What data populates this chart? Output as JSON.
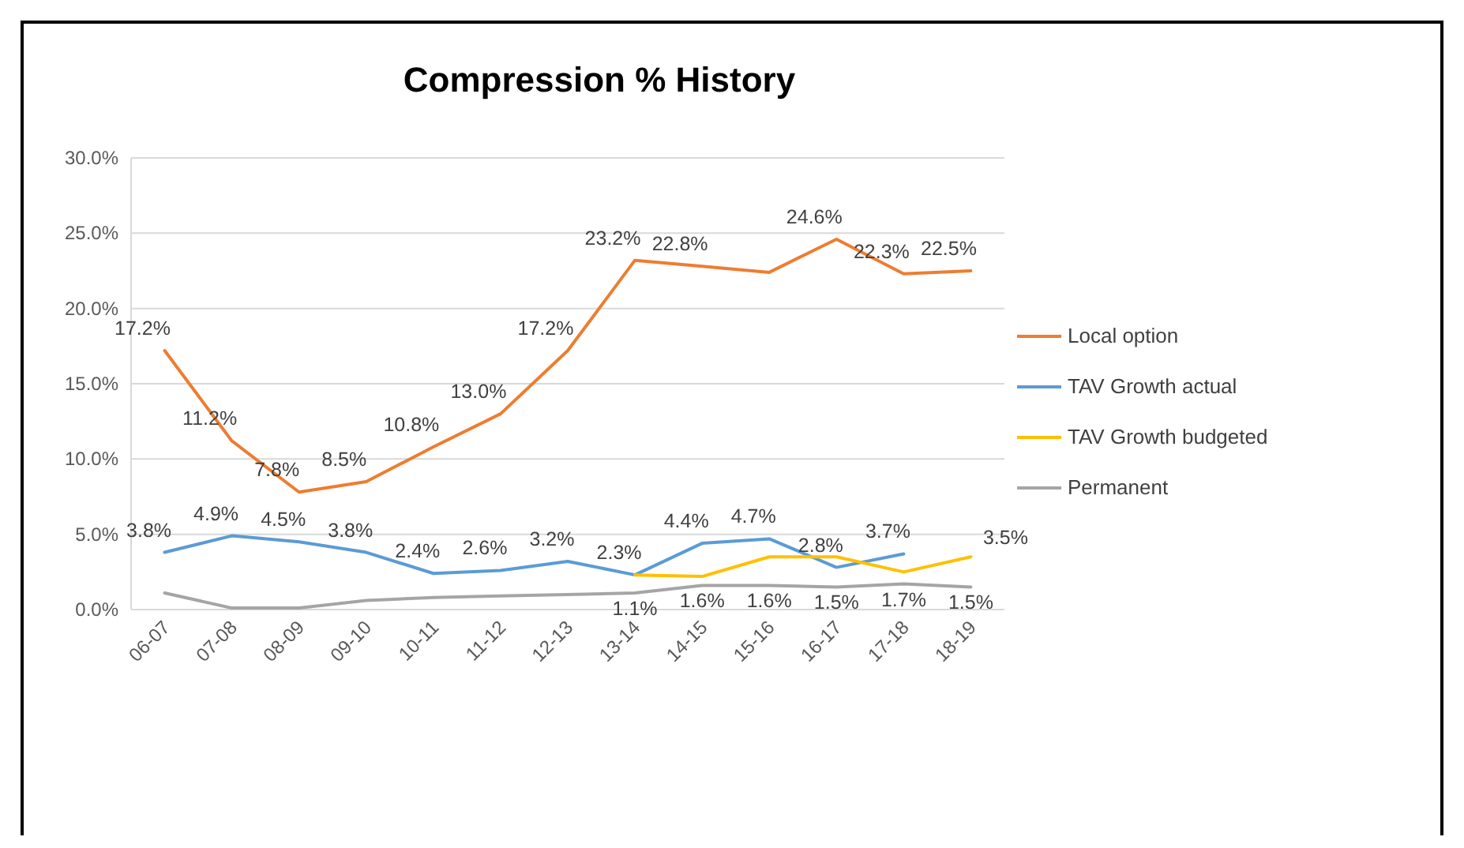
{
  "chart_data": {
    "type": "line",
    "title": "Compression % History",
    "categories": [
      "06-07",
      "07-08",
      "08-09",
      "09-10",
      "10-11",
      "11-12",
      "12-13",
      "13-14",
      "14-15",
      "15-16",
      "16-17",
      "17-18",
      "18-19"
    ],
    "series": [
      {
        "name": "Local option",
        "color": "#ed7d31",
        "values": [
          17.2,
          11.2,
          7.8,
          8.5,
          10.8,
          13.0,
          17.2,
          23.2,
          22.8,
          22.4,
          24.6,
          22.3,
          22.5
        ],
        "value_labels": [
          "17.2%",
          "11.2%",
          "7.8%",
          "8.5%",
          "10.8%",
          "13.0%",
          "17.2%",
          "23.2%",
          "22.8%",
          null,
          "24.6%",
          "22.3%",
          "22.5%"
        ]
      },
      {
        "name": "TAV Growth actual",
        "color": "#5b9bd5",
        "values": [
          3.8,
          4.9,
          4.5,
          3.8,
          2.4,
          2.6,
          3.2,
          2.3,
          4.4,
          4.7,
          2.8,
          3.7,
          null
        ],
        "value_labels": [
          "3.8%",
          "4.9%",
          "4.5%",
          "3.8%",
          "2.4%",
          "2.6%",
          "3.2%",
          "2.3%",
          "4.4%",
          "4.7%",
          "2.8%",
          "3.7%",
          null
        ]
      },
      {
        "name": "TAV Growth budgeted",
        "color": "#ffc000",
        "values": [
          null,
          null,
          null,
          null,
          null,
          null,
          null,
          2.3,
          2.2,
          3.5,
          3.5,
          2.5,
          3.5
        ],
        "value_labels": [
          null,
          null,
          null,
          null,
          null,
          null,
          null,
          null,
          null,
          null,
          null,
          null,
          "3.5%"
        ]
      },
      {
        "name": "Permanent",
        "color": "#a5a5a5",
        "values": [
          1.1,
          0.1,
          0.1,
          0.6,
          0.8,
          0.9,
          1.0,
          1.1,
          1.6,
          1.6,
          1.5,
          1.7,
          1.5
        ],
        "value_labels": [
          null,
          null,
          null,
          null,
          null,
          null,
          null,
          "1.1%",
          "1.6%",
          "1.6%",
          "1.5%",
          "1.7%",
          "1.5%"
        ]
      }
    ],
    "ylim": [
      0,
      30
    ],
    "yticks": [
      {
        "value": 0,
        "label": "0.0%"
      },
      {
        "value": 5,
        "label": "5.0%"
      },
      {
        "value": 10,
        "label": "10.0%"
      },
      {
        "value": 15,
        "label": "15.0%"
      },
      {
        "value": 20,
        "label": "20.0%"
      },
      {
        "value": 25,
        "label": "25.0%"
      },
      {
        "value": 30,
        "label": "30.0%"
      }
    ],
    "grid": "y",
    "legend": "right",
    "marker": "none",
    "line_style": "solid"
  }
}
